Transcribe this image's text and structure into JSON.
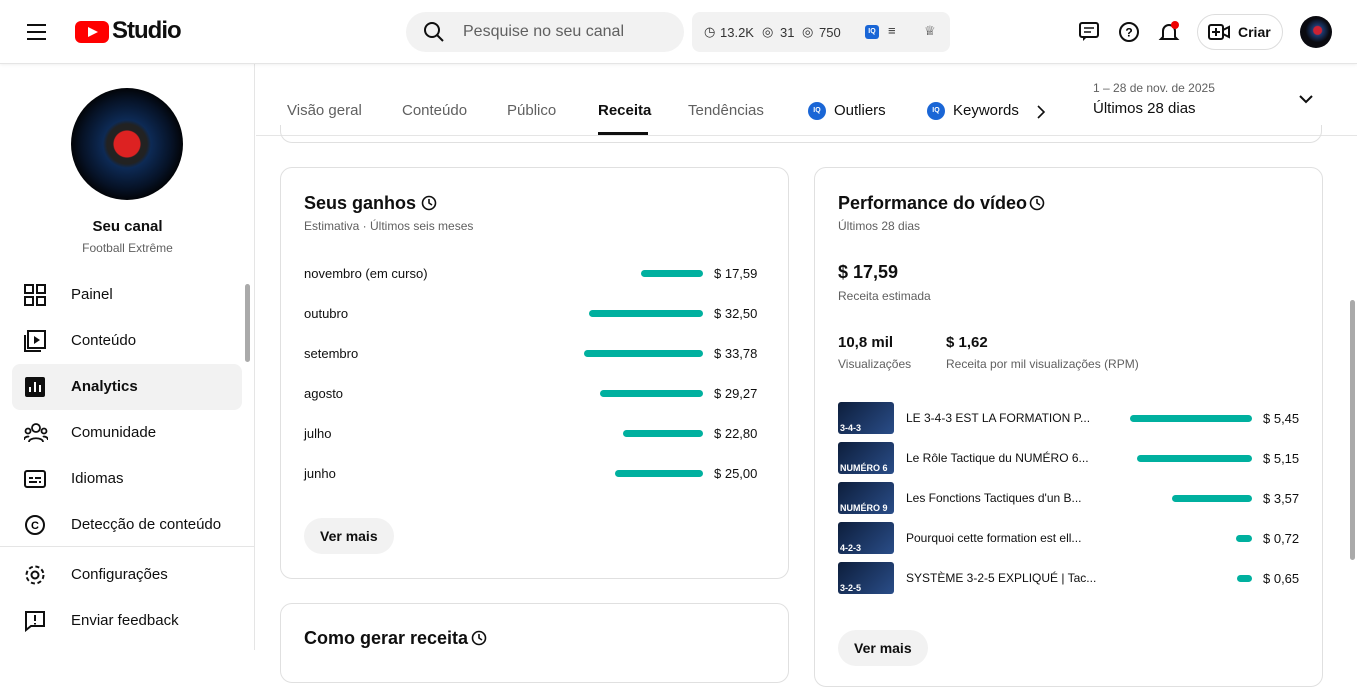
{
  "header": {
    "logo": "Studio",
    "search_placeholder": "Pesquise no seu canal",
    "stats": {
      "watch_time": "13.2K",
      "views_a": "31",
      "views_b": "750"
    },
    "create_label": "Criar"
  },
  "channel": {
    "name": "Seu canal",
    "handle": "Football Extrême"
  },
  "sidebar": {
    "items": [
      {
        "label": "Painel",
        "icon": "dashboard-icon"
      },
      {
        "label": "Conteúdo",
        "icon": "content-icon"
      },
      {
        "label": "Analytics",
        "icon": "analytics-icon",
        "active": true
      },
      {
        "label": "Comunidade",
        "icon": "community-icon"
      },
      {
        "label": "Idiomas",
        "icon": "subtitles-icon"
      },
      {
        "label": "Detecção de conteúdo",
        "icon": "copyright-icon"
      }
    ],
    "bottom": [
      {
        "label": "Configurações",
        "icon": "gear-icon"
      },
      {
        "label": "Enviar feedback",
        "icon": "feedback-icon"
      }
    ]
  },
  "tabs": [
    {
      "label": "Visão geral"
    },
    {
      "label": "Conteúdo"
    },
    {
      "label": "Público"
    },
    {
      "label": "Receita",
      "active": true
    },
    {
      "label": "Tendências"
    },
    {
      "label": "Outliers"
    },
    {
      "label": "Keywords"
    }
  ],
  "date_range": {
    "range": "1 – 28 de nov. de 2025",
    "label": "Últimos 28 dias"
  },
  "earnings": {
    "title": "Seus ganhos",
    "subtitle": "Estimativa · Últimos seis meses",
    "rows": [
      {
        "month": "novembro (em curso)",
        "value": 17.59,
        "label": "$ 17,59"
      },
      {
        "month": "outubro",
        "value": 32.5,
        "label": "$ 32,50"
      },
      {
        "month": "setembro",
        "value": 33.78,
        "label": "$ 33,78"
      },
      {
        "month": "agosto",
        "value": 29.27,
        "label": "$ 29,27"
      },
      {
        "month": "julho",
        "value": 22.8,
        "label": "$ 22,80"
      },
      {
        "month": "junho",
        "value": 25.0,
        "label": "$ 25,00"
      }
    ],
    "more": "Ver mais"
  },
  "how_to": {
    "title": "Como gerar receita"
  },
  "performance": {
    "title": "Performance do vídeo",
    "subtitle": "Últimos 28 dias",
    "revenue": "$ 17,59",
    "revenue_label": "Receita estimada",
    "views": "10,8 mil",
    "views_label": "Visualizações",
    "rpm": "$ 1,62",
    "rpm_label": "Receita por mil visualizações (RPM)",
    "videos": [
      {
        "title": "LE 3-4-3 EST LA FORMATION P...",
        "value": 5.45,
        "label": "$ 5,45",
        "thumb_text": "3-4-3"
      },
      {
        "title": "Le Rôle Tactique du NUMÉRO 6...",
        "value": 5.15,
        "label": "$ 5,15",
        "thumb_text": "NUMÉRO 6"
      },
      {
        "title": "Les Fonctions Tactiques d'un B...",
        "value": 3.57,
        "label": "$ 3,57",
        "thumb_text": "NUMÉRO 9"
      },
      {
        "title": "Pourquoi cette formation est ell...",
        "value": 0.72,
        "label": "$ 0,72",
        "thumb_text": "4-2-3"
      },
      {
        "title": "SYSTÈME 3-2-5 EXPLIQUÉ | Tac...",
        "value": 0.65,
        "label": "$ 0,65",
        "thumb_text": "3-2-5"
      }
    ],
    "more": "Ver mais"
  },
  "colors": {
    "bar": "#00b09f",
    "brand": "#ff0000"
  }
}
